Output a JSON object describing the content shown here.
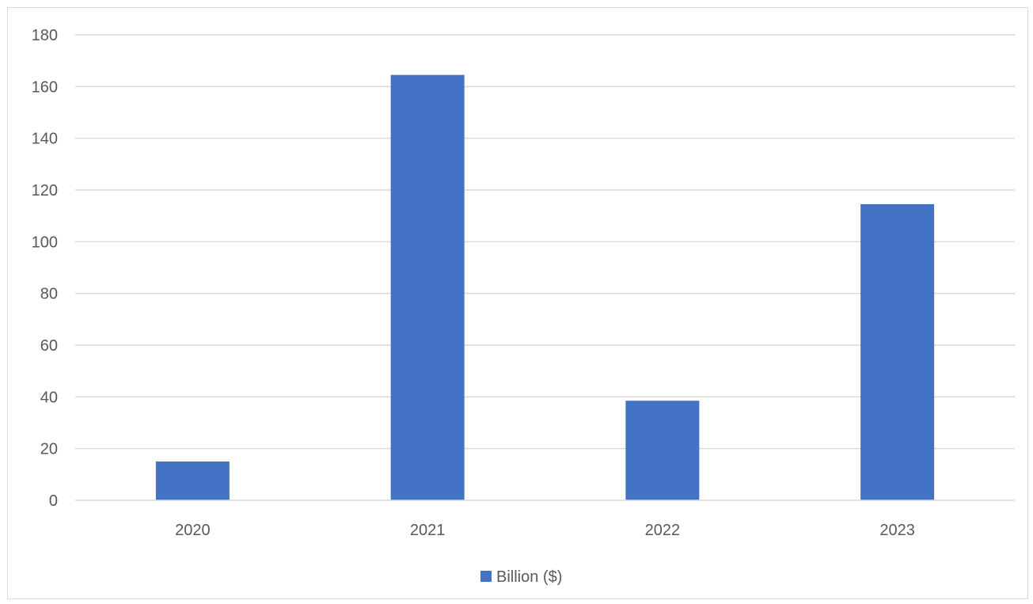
{
  "chart_data": {
    "type": "bar",
    "categories": [
      "2020",
      "2021",
      "2022",
      "2023"
    ],
    "series": [
      {
        "name": "Billion ($)",
        "values": [
          15,
          164.5,
          38.5,
          114.5
        ],
        "color": "#4472C4"
      }
    ],
    "y_ticks": [
      "0",
      "20",
      "40",
      "60",
      "80",
      "100",
      "120",
      "140",
      "160",
      "180"
    ],
    "ylim": [
      0,
      180
    ],
    "grid": true,
    "legend": "bottom",
    "title": "",
    "xlabel": "",
    "ylabel": "",
    "colors": {
      "gridline": "#d9d9d9",
      "text": "#595959",
      "frame": "#d9d9d9"
    }
  }
}
